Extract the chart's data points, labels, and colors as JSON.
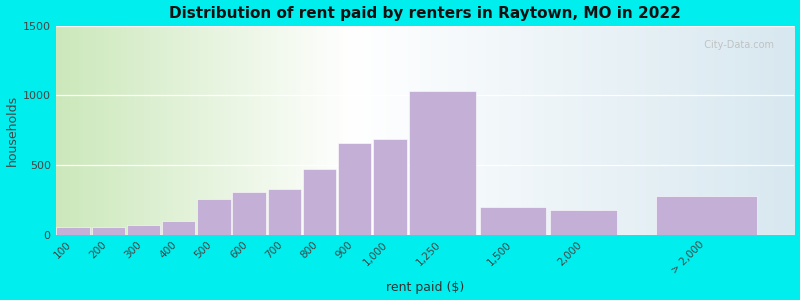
{
  "title": "Distribution of rent paid by renters in Raytown, MO in 2022",
  "xlabel": "rent paid ($)",
  "ylabel": "households",
  "bar_color": "#c4afd6",
  "background_outer": "#00eeee",
  "background_left": "#cce8bb",
  "background_right": "#d8e8f0",
  "ylim": [
    0,
    1500
  ],
  "yticks": [
    0,
    500,
    1000,
    1500
  ],
  "categories": [
    "100",
    "200",
    "300",
    "400",
    "500",
    "600",
    "700",
    "800",
    "900",
    "1,000",
    "1,250",
    "1,500",
    "2,000",
    "> 2,000"
  ],
  "values": [
    55,
    55,
    70,
    100,
    255,
    305,
    330,
    470,
    655,
    685,
    1030,
    195,
    175,
    275
  ],
  "bar_lefts": [
    0,
    1,
    2,
    3,
    4,
    5,
    6,
    7,
    8,
    9,
    10,
    12,
    14,
    17
  ],
  "bar_widths": [
    1,
    1,
    1,
    1,
    1,
    1,
    1,
    1,
    1,
    1,
    2,
    2,
    2,
    3
  ],
  "tick_positions": [
    0.5,
    1.5,
    2.5,
    3.5,
    4.5,
    5.5,
    6.5,
    7.5,
    8.5,
    9.5,
    11,
    13,
    15,
    18.5
  ],
  "watermark": "  City-Data.com"
}
